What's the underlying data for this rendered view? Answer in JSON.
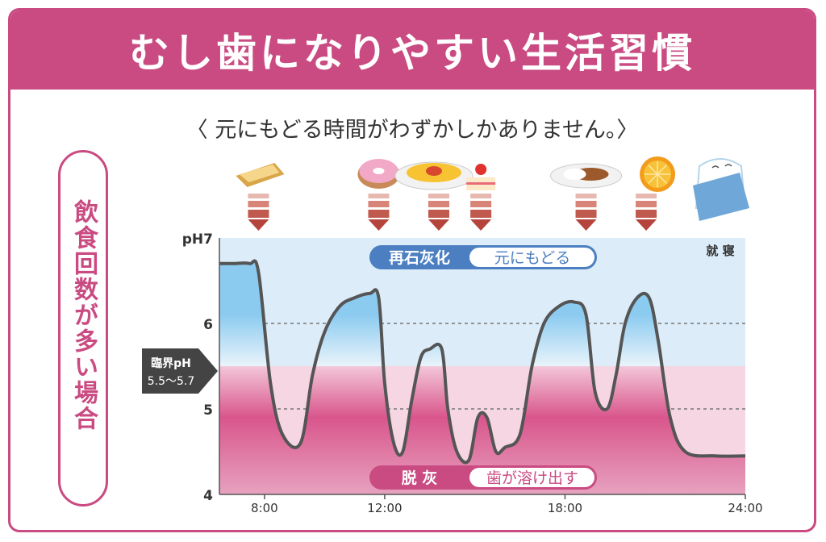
{
  "title": "むし歯になりやすい生活習慣",
  "subtitle": "〈 元にもどる時間がわずかしかありません。〉",
  "side_label": "飲食回数が多い場合",
  "critical_label_line1": "臨界pH",
  "critical_label_line2": "5.5〜5.7",
  "remineralization": {
    "title": "再石灰化",
    "text": "元にもどる"
  },
  "demineralization": {
    "title": "脱 灰",
    "text": "歯が溶け出す"
  },
  "bedtime_label": "就 寝",
  "colors": {
    "accent": "#c94b82",
    "blue_zone": "#dcecf8",
    "pink_zone": "#f5d6e2",
    "curve": "#555555",
    "arrow": "#b5443c"
  },
  "food_icons": [
    "toast-icon",
    "donut-icon",
    "omelet-rice-icon",
    "strawberry-cake-icon",
    "curry-rice-icon",
    "orange-icon",
    "sleeping-tooth-icon"
  ],
  "chart_data": {
    "type": "line",
    "xlabel": "",
    "ylabel": "",
    "x_ticks": [
      "8:00",
      "12:00",
      "18:00",
      "24:00"
    ],
    "y_ticks": [
      "pH7",
      "6",
      "5",
      "4"
    ],
    "xlim": [
      6.5,
      24
    ],
    "ylim": [
      4,
      7
    ],
    "critical_ph_range": [
      5.5,
      5.7
    ],
    "eating_times": [
      7.8,
      11.8,
      13.8,
      15.2,
      18.7,
      20.7
    ],
    "series": [
      {
        "points": [
          [
            6.5,
            6.7
          ],
          [
            7.0,
            6.7
          ],
          [
            7.5,
            6.7
          ],
          [
            7.8,
            6.6
          ],
          [
            8.2,
            5.3
          ],
          [
            8.6,
            4.7
          ],
          [
            9.2,
            4.6
          ],
          [
            9.6,
            5.4
          ],
          [
            10.0,
            5.9
          ],
          [
            10.5,
            6.2
          ],
          [
            11.0,
            6.3
          ],
          [
            11.5,
            6.35
          ],
          [
            11.8,
            6.3
          ],
          [
            12.0,
            5.3
          ],
          [
            12.3,
            4.6
          ],
          [
            12.6,
            4.5
          ],
          [
            12.9,
            5.1
          ],
          [
            13.2,
            5.6
          ],
          [
            13.5,
            5.7
          ],
          [
            13.9,
            5.7
          ],
          [
            14.1,
            5.0
          ],
          [
            14.4,
            4.5
          ],
          [
            14.8,
            4.4
          ],
          [
            15.1,
            4.9
          ],
          [
            15.4,
            4.9
          ],
          [
            15.7,
            4.5
          ],
          [
            16.0,
            4.55
          ],
          [
            16.5,
            4.7
          ],
          [
            16.9,
            5.5
          ],
          [
            17.3,
            6.0
          ],
          [
            17.8,
            6.2
          ],
          [
            18.3,
            6.25
          ],
          [
            18.7,
            6.1
          ],
          [
            19.0,
            5.2
          ],
          [
            19.4,
            5.0
          ],
          [
            19.7,
            5.4
          ],
          [
            20.0,
            6.0
          ],
          [
            20.4,
            6.3
          ],
          [
            20.8,
            6.3
          ],
          [
            21.1,
            5.8
          ],
          [
            21.5,
            4.9
          ],
          [
            22.0,
            4.5
          ],
          [
            23.0,
            4.45
          ],
          [
            24.0,
            4.45
          ]
        ]
      }
    ]
  }
}
